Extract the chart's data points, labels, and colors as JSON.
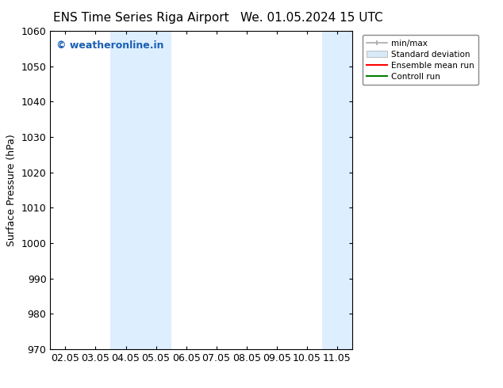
{
  "title_left": "ENS Time Series Riga Airport",
  "title_right": "We. 01.05.2024 15 UTC",
  "ylabel": "Surface Pressure (hPa)",
  "ylim": [
    970,
    1060
  ],
  "yticks": [
    970,
    980,
    990,
    1000,
    1010,
    1020,
    1030,
    1040,
    1050,
    1060
  ],
  "xtick_labels": [
    "02.05",
    "03.05",
    "04.05",
    "05.05",
    "06.05",
    "07.05",
    "08.05",
    "09.05",
    "10.05",
    "11.05"
  ],
  "xtick_positions": [
    0,
    1,
    2,
    3,
    4,
    5,
    6,
    7,
    8,
    9
  ],
  "xlim": [
    -0.5,
    9.5
  ],
  "shaded_bands": [
    {
      "x_start": 1.5,
      "x_end": 2.5,
      "color": "#ddeeff"
    },
    {
      "x_start": 2.5,
      "x_end": 3.5,
      "color": "#ddeeff"
    },
    {
      "x_start": 8.5,
      "x_end": 9.5,
      "color": "#ddeeff"
    }
  ],
  "watermark_text": "© weatheronline.in",
  "watermark_color": "#1a5fb4",
  "legend_items": [
    {
      "label": "min/max",
      "color": "#aaaaaa",
      "type": "errorbar"
    },
    {
      "label": "Standard deviation",
      "color": "#d8eaf8",
      "type": "rect"
    },
    {
      "label": "Ensemble mean run",
      "color": "#ff0000",
      "type": "line"
    },
    {
      "label": "Controll run",
      "color": "#008000",
      "type": "line"
    }
  ],
  "background_color": "#ffffff",
  "plot_bg_color": "#ffffff",
  "spine_color": "#000000",
  "tick_color": "#000000",
  "title_fontsize": 11,
  "axis_fontsize": 9,
  "tick_fontsize": 9,
  "watermark_fontsize": 9
}
